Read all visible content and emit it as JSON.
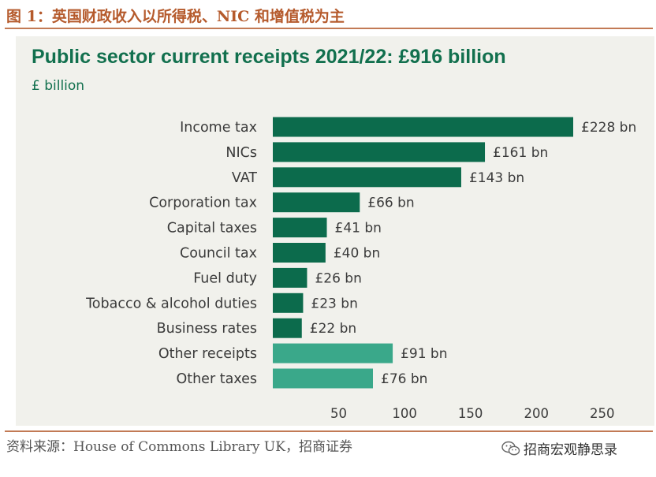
{
  "figure_caption": "图 1：英国财政收入以所得税、NIC 和增值税为主",
  "source": "资料来源：House of Commons Library UK，招商证券",
  "watermark": {
    "text": "招商宏观静思录",
    "icon": "wechat-icon"
  },
  "colors": {
    "caption": "#b55a2c",
    "rule": "#c27a55",
    "panel_bg": "#f1f1ec",
    "title": "#12704e",
    "bar_dark": "#0c6b4c",
    "bar_light": "#3aa88a",
    "text": "#3a3a3a"
  },
  "chart_data": {
    "type": "bar",
    "orientation": "horizontal",
    "title": "Public sector current receipts 2021/22: £916 billion",
    "subtitle": "£ billion",
    "categories": [
      "Income tax",
      "NICs",
      "VAT",
      "Corporation tax",
      "Capital taxes",
      "Council tax",
      "Fuel duty",
      "Tobacco & alcohol duties",
      "Business rates",
      "Other receipts",
      "Other taxes"
    ],
    "values": [
      228,
      161,
      143,
      66,
      41,
      40,
      26,
      23,
      22,
      91,
      76
    ],
    "data_labels": [
      "£228 bn",
      "£161 bn",
      "£143 bn",
      "£66 bn",
      "£41 bn",
      "£40 bn",
      "£26 bn",
      "£23 bn",
      "£22 bn",
      "£91 bn",
      "£76 bn"
    ],
    "bar_shades": [
      "dark",
      "dark",
      "dark",
      "dark",
      "dark",
      "dark",
      "dark",
      "dark",
      "dark",
      "light",
      "light"
    ],
    "x_ticks": [
      50,
      100,
      150,
      200,
      250
    ],
    "xlim": [
      0,
      260
    ],
    "grid": false,
    "legend": "none"
  }
}
